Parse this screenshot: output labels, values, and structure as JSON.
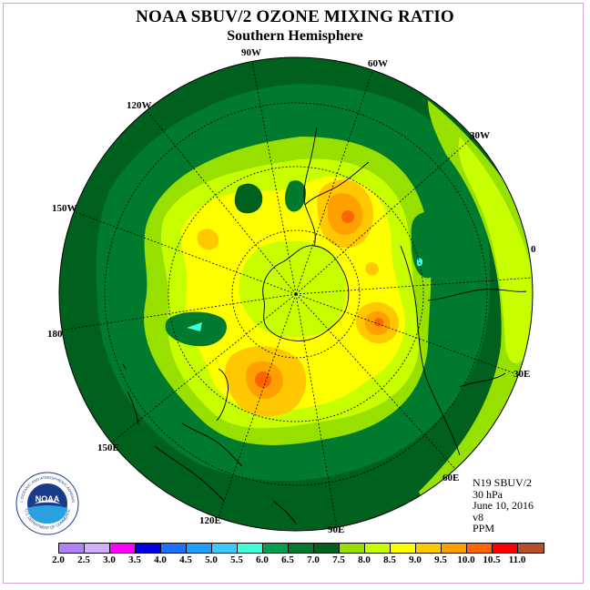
{
  "title": "NOAA SBUV/2 OZONE MIXING RATIO",
  "subtitle": "Southern Hemisphere",
  "longitude_labels": [
    "0",
    "30W",
    "60W",
    "90W",
    "120W",
    "150W",
    "180",
    "150E",
    "120E",
    "90E",
    "60E",
    "30E"
  ],
  "info": {
    "instrument": "N19 SBUV/2",
    "level": "30 hPa",
    "date": "June 10, 2016",
    "version": "v8",
    "units": "PPM"
  },
  "logo": {
    "text": "NOAA",
    "ring_text": "NATIONAL OCEANIC AND ATMOSPHERIC ADMINISTRATION",
    "ring_text_bottom": "U.S. DEPARTMENT OF COMMERCE"
  },
  "colorbar": {
    "labels": [
      "2.0",
      "2.5",
      "3.0",
      "3.5",
      "4.0",
      "4.5",
      "5.0",
      "5.5",
      "6.0",
      "6.5",
      "7.0",
      "7.5",
      "8.0",
      "8.5",
      "9.0",
      "9.5",
      "10.0",
      "10.5",
      "11.0"
    ],
    "colors": [
      "#b080ff",
      "#d0b0ff",
      "#ff00ff",
      "#0000e0",
      "#1e70ff",
      "#1e9eff",
      "#3cc8ff",
      "#40ffd8",
      "#00a050",
      "#007a2c",
      "#00601e",
      "#98e000",
      "#c8ff00",
      "#ffff00",
      "#ffc800",
      "#ffa000",
      "#ff6400",
      "#ff0000",
      "#b45028"
    ]
  }
}
